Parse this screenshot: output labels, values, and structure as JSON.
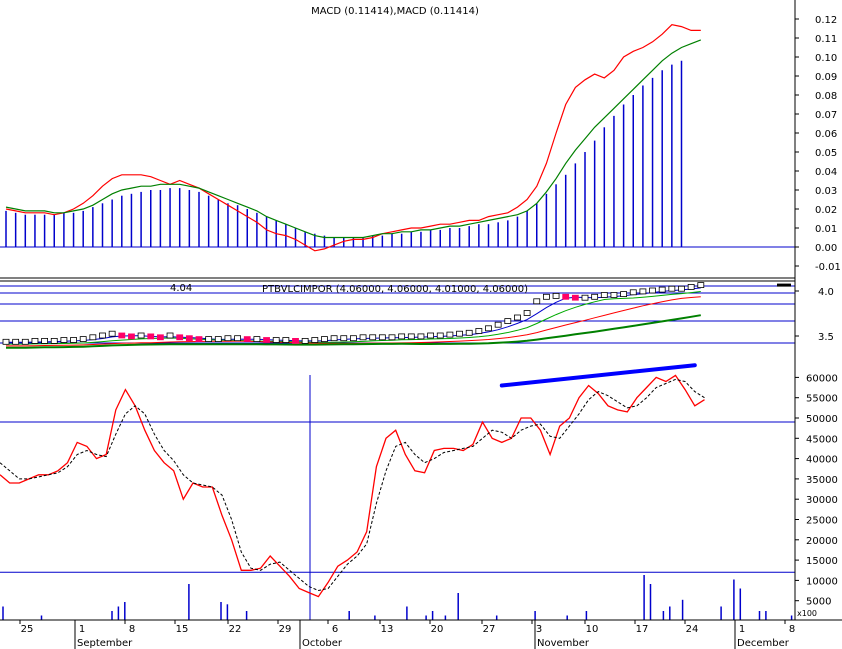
{
  "colors": {
    "axis": "#000000",
    "blue": "#0000cc",
    "red": "#ff0000",
    "green": "#008000",
    "magenta": "#ff0066",
    "marker": "#0000ff"
  },
  "chart_data": [
    {
      "panel": "macd",
      "type": "line",
      "title": "MACD (0.11414),MACD (0.11414)",
      "ylim": [
        -0.02,
        0.13
      ],
      "yticks": [
        -0.01,
        0.0,
        0.01,
        0.02,
        0.03,
        0.04,
        0.05,
        0.06,
        0.07,
        0.08,
        0.09,
        0.1,
        0.11,
        0.12
      ],
      "ytick_labels": [
        "-0.01",
        "0.00",
        "0.01",
        "0.02",
        "0.03",
        "0.04",
        "0.05",
        "0.06",
        "0.07",
        "0.08",
        "0.09",
        "0.10",
        "0.11",
        "0.12"
      ],
      "histogram": [
        0.019,
        0.018,
        0.017,
        0.017,
        0.017,
        0.017,
        0.018,
        0.018,
        0.019,
        0.021,
        0.023,
        0.025,
        0.027,
        0.028,
        0.029,
        0.03,
        0.03,
        0.031,
        0.031,
        0.03,
        0.029,
        0.027,
        0.025,
        0.023,
        0.022,
        0.02,
        0.018,
        0.016,
        0.014,
        0.012,
        0.01,
        0.008,
        0.007,
        0.006,
        0.005,
        0.005,
        0.005,
        0.005,
        0.006,
        0.006,
        0.007,
        0.007,
        0.008,
        0.008,
        0.009,
        0.009,
        0.01,
        0.01,
        0.011,
        0.012,
        0.012,
        0.013,
        0.014,
        0.016,
        0.019,
        0.023,
        0.028,
        0.033,
        0.038,
        0.044,
        0.05,
        0.056,
        0.063,
        0.069,
        0.075,
        0.08,
        0.085,
        0.089,
        0.093,
        0.096,
        0.098
      ],
      "series": [
        {
          "values": [
            0.02,
            0.019,
            0.018,
            0.018,
            0.018,
            0.017,
            0.018,
            0.02,
            0.023,
            0.027,
            0.032,
            0.036,
            0.038,
            0.038,
            0.038,
            0.037,
            0.035,
            0.033,
            0.035,
            0.033,
            0.031,
            0.028,
            0.025,
            0.022,
            0.019,
            0.016,
            0.013,
            0.009,
            0.007,
            0.006,
            0.004,
            0.001,
            -0.002,
            -0.001,
            0.001,
            0.003,
            0.004,
            0.004,
            0.005,
            0.007,
            0.008,
            0.009,
            0.01,
            0.01,
            0.011,
            0.012,
            0.012,
            0.013,
            0.014,
            0.014,
            0.016,
            0.017,
            0.018,
            0.021,
            0.025,
            0.032,
            0.044,
            0.06,
            0.075,
            0.084,
            0.088,
            0.091,
            0.089,
            0.093,
            0.1,
            0.103,
            0.105,
            0.108,
            0.112,
            0.117,
            0.116,
            0.114,
            0.114
          ]
        },
        {
          "values": [
            0.021,
            0.02,
            0.019,
            0.019,
            0.019,
            0.018,
            0.018,
            0.019,
            0.02,
            0.022,
            0.025,
            0.028,
            0.03,
            0.031,
            0.032,
            0.032,
            0.033,
            0.033,
            0.033,
            0.032,
            0.031,
            0.029,
            0.027,
            0.025,
            0.023,
            0.021,
            0.019,
            0.016,
            0.014,
            0.012,
            0.01,
            0.008,
            0.006,
            0.005,
            0.005,
            0.005,
            0.005,
            0.005,
            0.006,
            0.007,
            0.007,
            0.008,
            0.008,
            0.009,
            0.009,
            0.01,
            0.011,
            0.011,
            0.012,
            0.013,
            0.014,
            0.015,
            0.016,
            0.017,
            0.019,
            0.023,
            0.029,
            0.036,
            0.044,
            0.051,
            0.057,
            0.063,
            0.068,
            0.073,
            0.078,
            0.083,
            0.088,
            0.093,
            0.098,
            0.102,
            0.105,
            0.107,
            0.109
          ]
        }
      ]
    },
    {
      "panel": "price",
      "type": "candlestick",
      "title": "PTBVLCIMPOR (4.06000, 4.06000, 4.01000, 4.06000)",
      "annotation": "4.04",
      "ylim": [
        3.4,
        4.1
      ],
      "yticks": [
        3.5,
        4.0
      ],
      "ytick_labels": [
        "3.5",
        "4.0"
      ],
      "close": [
        3.43,
        3.43,
        3.43,
        3.44,
        3.44,
        3.44,
        3.45,
        3.45,
        3.46,
        3.48,
        3.5,
        3.52,
        3.5,
        3.49,
        3.5,
        3.49,
        3.48,
        3.5,
        3.48,
        3.47,
        3.46,
        3.46,
        3.46,
        3.47,
        3.47,
        3.46,
        3.46,
        3.45,
        3.45,
        3.45,
        3.44,
        3.44,
        3.45,
        3.46,
        3.47,
        3.47,
        3.47,
        3.48,
        3.48,
        3.48,
        3.48,
        3.49,
        3.49,
        3.49,
        3.5,
        3.5,
        3.51,
        3.52,
        3.53,
        3.55,
        3.58,
        3.62,
        3.66,
        3.7,
        3.75,
        3.88,
        3.93,
        3.94,
        3.93,
        3.92,
        3.92,
        3.93,
        3.95,
        3.95,
        3.96,
        3.98,
        3.99,
        4.0,
        4.01,
        4.02,
        4.02,
        4.04,
        4.06
      ]
    },
    {
      "panel": "oscillator",
      "type": "line",
      "ylim": [
        2000,
        65000
      ],
      "yticks": [
        5000,
        10000,
        15000,
        20000,
        25000,
        30000,
        35000,
        40000,
        45000,
        50000,
        55000,
        60000
      ],
      "ytick_labels": [
        "5000",
        "10000",
        "15000",
        "20000",
        "25000",
        "30000",
        "35000",
        "40000",
        "45000",
        "50000",
        "55000",
        "60000"
      ],
      "unit_label": "x100",
      "series": [
        {
          "values": [
            36000,
            34000,
            34000,
            35000,
            36000,
            36000,
            37000,
            39000,
            44000,
            43000,
            40000,
            41000,
            52000,
            57000,
            53000,
            47000,
            42000,
            39000,
            37000,
            30000,
            34000,
            33000,
            33000,
            26000,
            20000,
            12500,
            12500,
            13000,
            16000,
            13500,
            11000,
            8000,
            7000,
            6000,
            9500,
            13500,
            15000,
            17000,
            22000,
            38000,
            45000,
            47000,
            41000,
            37000,
            36500,
            42000,
            42500,
            42500,
            42000,
            43500,
            49000,
            45000,
            44000,
            45000,
            50000,
            50000,
            47000,
            41000,
            48000,
            50000,
            55000,
            58000,
            56000,
            53000,
            52000,
            51500,
            55000,
            57500,
            60000,
            59000,
            60500,
            57000,
            53000,
            54500
          ]
        },
        {
          "values": [
            39000,
            37000,
            35000,
            35000,
            35500,
            36000,
            36500,
            38000,
            41000,
            42000,
            41000,
            40500,
            46000,
            51000,
            53000,
            51000,
            46000,
            42000,
            39500,
            36000,
            34000,
            33500,
            33000,
            31000,
            25000,
            17000,
            13000,
            12500,
            14000,
            14500,
            12500,
            10500,
            8500,
            7500,
            8000,
            11000,
            14000,
            16000,
            19000,
            29000,
            37000,
            43000,
            44000,
            41000,
            39000,
            40000,
            41500,
            42000,
            42500,
            43000,
            45000,
            47000,
            46500,
            45000,
            47000,
            48000,
            48500,
            45500,
            45000,
            48000,
            51000,
            54500,
            56500,
            55500,
            54000,
            52500,
            53000,
            55000,
            57500,
            58500,
            59500,
            59000,
            56500,
            55000
          ]
        }
      ],
      "hlines": [
        49000,
        12000
      ],
      "trendline": {
        "from": [
          52,
          58000
        ],
        "to": [
          72,
          63000
        ]
      },
      "volume": [
        3000,
        0,
        0,
        0,
        0,
        0,
        1000,
        0,
        0,
        0,
        0,
        0,
        0,
        0,
        0,
        0,
        0,
        2000,
        3000,
        4000,
        0,
        0,
        0,
        0,
        0,
        0,
        0,
        0,
        0,
        8000,
        0,
        0,
        0,
        0,
        4000,
        3500,
        0,
        0,
        2000,
        0,
        0,
        0,
        0,
        0,
        0,
        0,
        0,
        0,
        0,
        0,
        0,
        0,
        0,
        0,
        2000,
        0,
        0,
        0,
        1000,
        0,
        0,
        0,
        0,
        3000,
        0,
        0,
        1000,
        2000,
        0,
        1000,
        0,
        6000,
        0,
        0,
        0,
        0,
        0,
        1000,
        0,
        0,
        0,
        0,
        0,
        2000,
        0,
        0,
        0,
        0,
        1000,
        0,
        0,
        2000,
        0,
        0,
        0,
        0,
        0,
        0,
        0,
        0,
        10000,
        8000,
        0,
        2000,
        3000,
        0,
        4500,
        0,
        0,
        0,
        0,
        0,
        3000,
        0,
        9000,
        7000,
        0,
        0,
        2000,
        2000,
        0,
        0,
        0,
        1000
      ]
    }
  ],
  "x_axis": {
    "day_labels": [
      "25",
      "1",
      "8",
      "15",
      "22",
      "29",
      "6",
      "13",
      "20",
      "27",
      "3",
      "10",
      "17",
      "24",
      "1",
      "8"
    ],
    "month_labels": [
      "September",
      "October",
      "November",
      "December"
    ]
  }
}
